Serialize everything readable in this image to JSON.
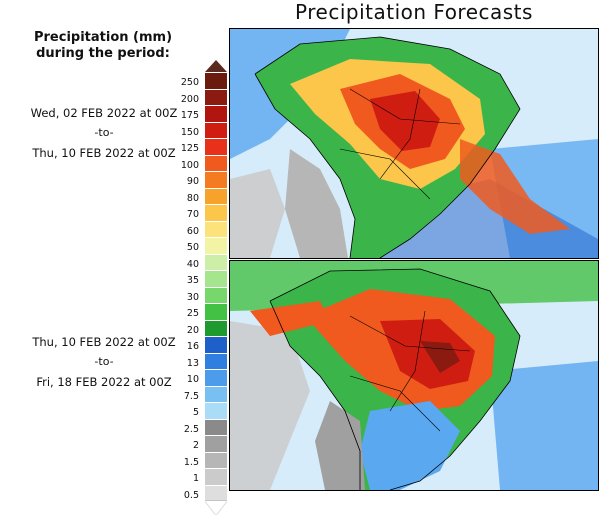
{
  "title": "Precipitation Forecasts",
  "legend": {
    "title_line1": "Precipitation (mm)",
    "title_line2": "during the period:",
    "levels": [
      "250",
      "200",
      "175",
      "150",
      "125",
      "100",
      "90",
      "80",
      "70",
      "60",
      "50",
      "40",
      "35",
      "30",
      "25",
      "20",
      "16",
      "13",
      "10",
      "7.5",
      "5",
      "2.5",
      "2",
      "1.5",
      "1",
      "0.5"
    ],
    "colors": [
      "#6b1b0e",
      "#8b1a10",
      "#b0160f",
      "#d01d12",
      "#e8301a",
      "#f05a1e",
      "#f47b22",
      "#f7a22b",
      "#fbc64a",
      "#fbe27a",
      "#f2f3a4",
      "#cdeea6",
      "#a5e58e",
      "#78d76c",
      "#43c145",
      "#1e9a2f",
      "#1f5fc9",
      "#2f7fe0",
      "#4d9ceb",
      "#78bff2",
      "#a8dcf7",
      "#8a8a8a",
      "#a0a0a0",
      "#b6b6b6",
      "#cbcbcb",
      "#dedede"
    ],
    "top_arrow_color": "#5a2a1e",
    "bottom_arrow_color": "#ffffff"
  },
  "periods": [
    {
      "start": "Wed, 02 FEB 2022 at 00Z",
      "to": "-to-",
      "end": "Thu, 10 FEB 2022 at 00Z"
    },
    {
      "start": "Thu, 10 FEB 2022 at 00Z",
      "to": "-to-",
      "end": "Fri, 18 FEB 2022 at 00Z"
    }
  ],
  "maps": [
    {
      "name": "forecast-map-period-1",
      "ocean_color": "#ffffff",
      "land_color": "#3bb54a"
    },
    {
      "name": "forecast-map-period-2",
      "ocean_color": "#ffffff",
      "land_color": "#3bb54a"
    }
  ]
}
